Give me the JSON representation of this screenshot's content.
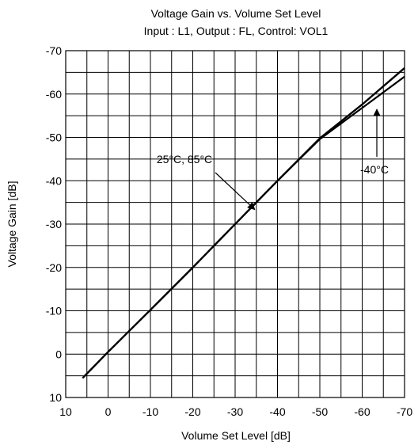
{
  "chart_data": {
    "type": "line",
    "title": "Voltage Gain vs. Volume Set Level",
    "subtitle": "Input : L1, Output : FL, Control: VOL1",
    "xlabel": "Volume Set Level [dB]",
    "ylabel": "Voltage Gain [dB]",
    "xlim": [
      10,
      -70
    ],
    "ylim": [
      10,
      -70
    ],
    "x_ticks": [
      "10",
      "0",
      "-10",
      "-20",
      "-30",
      "-40",
      "-50",
      "-60",
      "-70"
    ],
    "y_ticks": [
      "-70",
      "-60",
      "-50",
      "-40",
      "-30",
      "-20",
      "-10",
      "0",
      "10"
    ],
    "grid": true,
    "series": [
      {
        "name": "25°C",
        "x": [
          6,
          0,
          -10,
          -20,
          -30,
          -40,
          -50,
          -60,
          -70
        ],
        "y": [
          5.5,
          -0.5,
          -10.2,
          -20,
          -30,
          -40,
          -49.8,
          -57.6,
          -66
        ]
      },
      {
        "name": "85°C",
        "x": [
          6,
          0,
          -10,
          -20,
          -30,
          -40,
          -50,
          -60,
          -70
        ],
        "y": [
          5.5,
          -0.5,
          -10.2,
          -20,
          -30,
          -40,
          -49.8,
          -57.6,
          -66
        ]
      },
      {
        "name": "-40°C",
        "x": [
          6,
          0,
          -10,
          -20,
          -30,
          -40,
          -50,
          -60,
          -70
        ],
        "y": [
          5.5,
          -0.5,
          -10.2,
          -20,
          -30,
          -40,
          -49.6,
          -56.8,
          -64
        ]
      }
    ],
    "annotations": [
      {
        "text": "25°C, 85°C",
        "points_to": [
          -35,
          -33
        ]
      },
      {
        "text": "-40°C",
        "points_to": [
          -62.5,
          -57.2
        ]
      }
    ]
  }
}
